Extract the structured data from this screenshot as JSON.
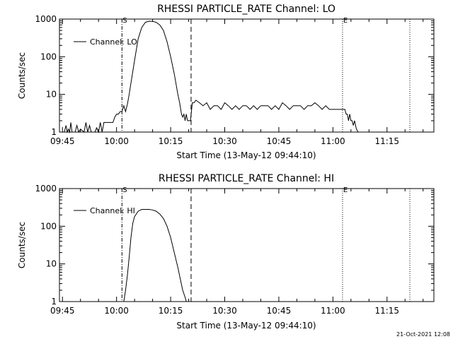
{
  "footer": {
    "timestamp": "21-Oct-2021 12:08"
  },
  "chart_data": [
    {
      "type": "line",
      "title": "RHESSI PARTICLE_RATE Channel: LO",
      "xlabel": "Start Time (13-May-12 09:44:10)",
      "ylabel": "Counts/sec",
      "yscale": "log",
      "ylim": [
        1,
        1000
      ],
      "xlim": [
        "09:44:10",
        "11:28:00"
      ],
      "x_ticks": [
        "09:45",
        "10:00",
        "10:15",
        "10:30",
        "10:45",
        "11:00",
        "11:15"
      ],
      "y_ticks": [
        "1",
        "10",
        "100",
        "1000"
      ],
      "legend": {
        "label": "Channel: LO",
        "position": "top-left"
      },
      "markers": [
        {
          "label": "S",
          "time": "10:01:30",
          "style": "dash-dot"
        },
        {
          "time": "10:20:40",
          "style": "dashed"
        },
        {
          "label": "E",
          "time": "11:02:40",
          "style": "dotted"
        },
        {
          "time": "11:21:20",
          "style": "dotted"
        }
      ],
      "series": [
        {
          "name": "Channel: LO",
          "x": [
            "09:45:30",
            "09:46:00",
            "09:46:20",
            "09:46:40",
            "09:47:00",
            "09:47:20",
            "09:47:40",
            "09:48:30",
            "09:49:00",
            "09:49:30",
            "09:50:00",
            "09:51:00",
            "09:51:30",
            "09:52:00",
            "09:52:30",
            "09:53:00",
            "09:53:30",
            "09:54:00",
            "09:54:30",
            "09:55:00",
            "09:55:30",
            "09:56:00",
            "09:56:30",
            "09:57:00",
            "09:58:00",
            "09:59:00",
            "09:59:30",
            "10:00:00",
            "10:00:30",
            "10:01:00",
            "10:01:30",
            "10:02:00",
            "10:02:30",
            "10:03:00",
            "10:03:30",
            "10:04:00",
            "10:05:00",
            "10:06:00",
            "10:07:00",
            "10:08:00",
            "10:09:00",
            "10:10:00",
            "10:11:00",
            "10:12:00",
            "10:13:00",
            "10:14:00",
            "10:15:00",
            "10:16:00",
            "10:17:00",
            "10:17:30",
            "10:18:00",
            "10:18:20",
            "10:18:40",
            "10:19:00",
            "10:19:20",
            "10:19:40",
            "10:20:00",
            "10:20:30",
            "10:21:00",
            "10:21:30",
            "10:22:00",
            "10:23:00",
            "10:24:00",
            "10:25:00",
            "10:26:00",
            "10:27:00",
            "10:28:00",
            "10:29:00",
            "10:30:00",
            "10:31:00",
            "10:32:00",
            "10:33:00",
            "10:34:00",
            "10:35:00",
            "10:36:00",
            "10:37:00",
            "10:38:00",
            "10:39:00",
            "10:40:00",
            "10:41:00",
            "10:42:00",
            "10:43:00",
            "10:44:00",
            "10:45:00",
            "10:46:00",
            "10:47:00",
            "10:48:00",
            "10:49:00",
            "10:50:00",
            "10:51:00",
            "10:52:00",
            "10:53:00",
            "10:54:00",
            "10:55:00",
            "10:56:00",
            "10:57:00",
            "10:58:00",
            "10:59:00",
            "11:00:00",
            "11:01:00",
            "11:02:00",
            "11:02:40",
            "11:03:00",
            "11:03:20",
            "11:03:40",
            "11:04:00",
            "11:04:20",
            "11:04:40",
            "11:05:00",
            "11:05:20",
            "11:05:40",
            "11:06:00",
            "11:06:30",
            "11:07:00"
          ],
          "values": [
            1,
            1.5,
            1,
            1.2,
            1,
            1.8,
            1,
            1,
            1.5,
            1,
            1.2,
            1,
            1.8,
            1,
            1.5,
            1,
            1,
            1,
            1.3,
            1,
            1.8,
            1,
            1.8,
            1.8,
            1.8,
            1.8,
            2.5,
            3,
            3,
            3.5,
            3.5,
            5,
            3.5,
            5.5,
            10,
            20,
            80,
            300,
            600,
            820,
            880,
            870,
            820,
            700,
            500,
            250,
            100,
            35,
            10,
            6,
            3,
            2.5,
            3,
            2,
            3,
            2,
            2,
            2,
            6,
            6,
            7,
            6,
            5,
            6,
            4,
            5,
            5,
            4,
            6,
            5,
            4,
            5,
            4,
            5,
            5,
            4,
            5,
            4,
            5,
            5,
            5,
            4,
            5,
            4,
            6,
            5,
            4,
            5,
            5,
            5,
            4,
            5,
            5,
            6,
            5,
            4,
            5,
            4,
            4,
            4,
            4,
            4,
            4,
            4,
            3,
            3,
            2,
            3,
            2,
            2,
            1.5,
            2,
            1.2,
            1
          ]
        }
      ]
    },
    {
      "type": "line",
      "title": "RHESSI PARTICLE_RATE Channel: HI",
      "xlabel": "Start Time (13-May-12 09:44:10)",
      "ylabel": "Counts/sec",
      "yscale": "log",
      "ylim": [
        1,
        1000
      ],
      "xlim": [
        "09:44:10",
        "11:28:00"
      ],
      "x_ticks": [
        "09:45",
        "10:00",
        "10:15",
        "10:30",
        "10:45",
        "11:00",
        "11:15"
      ],
      "y_ticks": [
        "1",
        "10",
        "100",
        "1000"
      ],
      "legend": {
        "label": "Channel: HI",
        "position": "top-left"
      },
      "markers": [
        {
          "label": "S",
          "time": "10:01:30",
          "style": "dash-dot"
        },
        {
          "time": "10:20:40",
          "style": "dashed"
        },
        {
          "label": "E",
          "time": "11:02:40",
          "style": "dotted"
        },
        {
          "time": "11:21:20",
          "style": "dotted"
        }
      ],
      "series": [
        {
          "name": "Channel: HI",
          "x": [
            "10:02:00",
            "10:02:30",
            "10:03:00",
            "10:03:30",
            "10:04:00",
            "10:04:30",
            "10:05:00",
            "10:06:00",
            "10:07:00",
            "10:08:00",
            "10:09:00",
            "10:10:00",
            "10:11:00",
            "10:12:00",
            "10:13:00",
            "10:14:00",
            "10:15:00",
            "10:16:00",
            "10:17:00",
            "10:17:40",
            "10:18:20",
            "10:19:00",
            "10:19:20"
          ],
          "values": [
            1,
            2,
            5,
            15,
            50,
            120,
            180,
            250,
            280,
            280,
            280,
            270,
            250,
            210,
            160,
            100,
            50,
            20,
            8,
            4,
            2,
            1.3,
            1
          ]
        }
      ]
    }
  ]
}
